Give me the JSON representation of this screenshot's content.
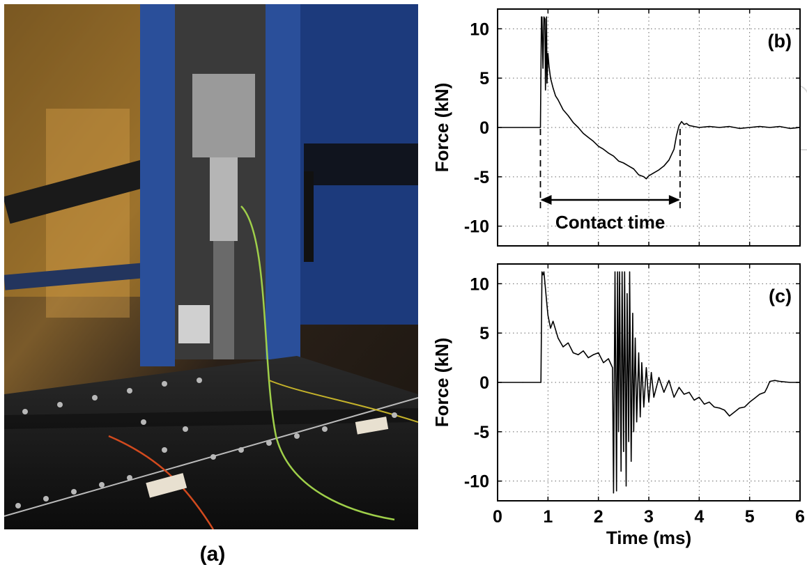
{
  "photo": {
    "caption": "(a)",
    "colors": {
      "frame": "#2a4f9a",
      "background": "#2b2117",
      "plate": "#141414",
      "warm_light": "#e8b040"
    }
  },
  "watermark": {
    "text": "Open"
  },
  "chart_data": [
    {
      "type": "line",
      "title": "",
      "panel_label": "(b)",
      "xlabel": "",
      "ylabel": "Force (kN)",
      "xlim": [
        0,
        6
      ],
      "ylim": [
        -12,
        12
      ],
      "xticks": [],
      "yticks": [
        "10",
        "5",
        "0",
        "-5",
        "-10"
      ],
      "grid": true,
      "annotation": {
        "text": "Contact time",
        "from_x": 0.85,
        "to_x": 3.62
      },
      "series": [
        {
          "x": [
            0,
            0.5,
            0.85,
            0.87,
            0.88,
            0.9,
            0.92,
            0.94,
            0.95,
            0.97,
            0.98,
            1.0,
            1.02,
            1.05,
            1.1,
            1.15,
            1.2,
            1.3,
            1.4,
            1.5,
            1.6,
            1.7,
            1.8,
            1.9,
            2.0,
            2.1,
            2.2,
            2.3,
            2.4,
            2.5,
            2.6,
            2.7,
            2.8,
            2.9,
            2.95,
            3.0,
            3.1,
            3.2,
            3.3,
            3.4,
            3.5,
            3.55,
            3.6,
            3.65,
            3.7,
            3.75,
            3.8,
            3.9,
            4.0,
            4.2,
            4.4,
            4.6,
            4.8,
            5.0,
            5.2,
            5.4,
            5.6,
            5.8,
            6.0
          ],
          "y": [
            0,
            0,
            0,
            11.2,
            11.2,
            6.0,
            11.2,
            11.0,
            3.8,
            11.2,
            4.5,
            7.5,
            6.2,
            5.0,
            4.0,
            3.2,
            2.8,
            1.8,
            1.2,
            0.5,
            0.0,
            -0.6,
            -1.0,
            -1.4,
            -1.9,
            -2.2,
            -2.6,
            -2.9,
            -3.4,
            -3.6,
            -3.9,
            -4.2,
            -4.8,
            -5.0,
            -5.2,
            -4.9,
            -4.6,
            -4.3,
            -3.9,
            -3.3,
            -2.2,
            -0.8,
            0.2,
            0.6,
            0.3,
            0.4,
            0.2,
            0.1,
            0.0,
            0.1,
            0.0,
            0.1,
            -0.1,
            0.0,
            0.1,
            0.0,
            0.1,
            -0.1,
            0.0
          ]
        }
      ]
    },
    {
      "type": "line",
      "title": "",
      "panel_label": "(c)",
      "xlabel": "Time (ms)",
      "ylabel": "Force (kN)",
      "xlim": [
        0,
        6
      ],
      "ylim": [
        -12,
        12
      ],
      "xticks": [
        "0",
        "1",
        "2",
        "3",
        "4",
        "5",
        "6"
      ],
      "yticks": [
        "10",
        "5",
        "0",
        "-5",
        "-10"
      ],
      "grid": true,
      "series": [
        {
          "x": [
            0,
            0.5,
            0.86,
            0.88,
            0.9,
            0.92,
            0.95,
            0.98,
            1.0,
            1.05,
            1.1,
            1.2,
            1.3,
            1.4,
            1.5,
            1.6,
            1.7,
            1.8,
            1.9,
            2.0,
            2.1,
            2.2,
            2.28,
            2.3,
            2.33,
            2.36,
            2.38,
            2.4,
            2.42,
            2.45,
            2.47,
            2.5,
            2.52,
            2.55,
            2.57,
            2.6,
            2.62,
            2.65,
            2.68,
            2.7,
            2.73,
            2.76,
            2.8,
            2.83,
            2.86,
            2.9,
            2.95,
            3.0,
            3.05,
            3.1,
            3.2,
            3.3,
            3.4,
            3.5,
            3.6,
            3.7,
            3.8,
            3.9,
            4.0,
            4.1,
            4.2,
            4.3,
            4.4,
            4.5,
            4.6,
            4.7,
            4.8,
            4.9,
            5.0,
            5.1,
            5.2,
            5.3,
            5.35,
            5.4,
            5.5,
            5.6,
            5.8,
            6.0
          ],
          "y": [
            0,
            0,
            0,
            11.2,
            10.9,
            11.2,
            9.5,
            7.8,
            6.8,
            5.5,
            6.2,
            4.5,
            3.6,
            4.0,
            3.0,
            2.8,
            3.2,
            2.5,
            2.8,
            3.0,
            2.0,
            2.4,
            1.5,
            -11.2,
            11.2,
            -11.0,
            11.2,
            -5.0,
            11.2,
            -9.0,
            11.2,
            -7.0,
            11.2,
            -10.5,
            9.0,
            -6.0,
            11.2,
            -8.0,
            7.0,
            -5.0,
            4.5,
            -4.0,
            3.0,
            -3.5,
            2.0,
            -2.5,
            1.5,
            -2.0,
            1.0,
            -1.5,
            0.5,
            -1.0,
            0.2,
            -1.5,
            -0.5,
            -1.2,
            -1.0,
            -1.8,
            -1.5,
            -2.2,
            -2.0,
            -2.5,
            -2.6,
            -2.8,
            -3.4,
            -3.0,
            -2.6,
            -2.5,
            -2.0,
            -1.6,
            -1.2,
            -1.0,
            -0.5,
            0.1,
            0.2,
            0.1,
            0.0,
            0.0
          ]
        }
      ]
    }
  ]
}
